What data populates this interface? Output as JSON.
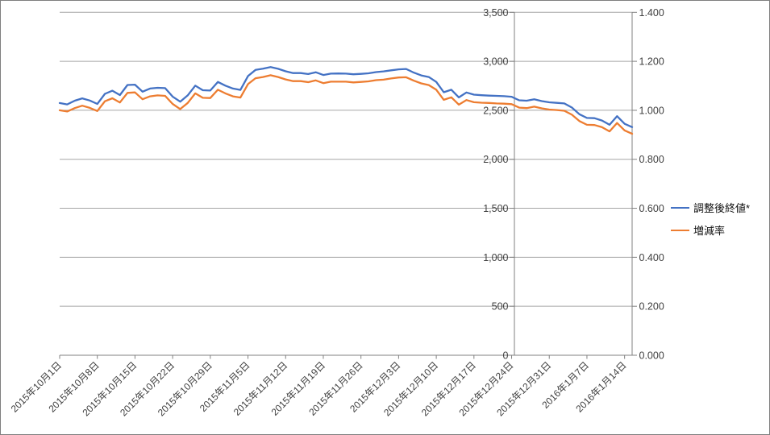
{
  "chart_data": {
    "type": "line",
    "title": "",
    "grid": true,
    "legend_position": "right",
    "x_axis": {
      "label_interval": 5,
      "labels_shown": [
        "2015年10月1日",
        "2015年10月8日",
        "2015年10月15日",
        "2015年10月22日",
        "2015年10月29日",
        "2015年11月5日",
        "2015年11月12日",
        "2015年11月19日",
        "2015年11月26日",
        "2015年12月3日",
        "2015年12月10日",
        "2015年12月17日",
        "2015年12月24日",
        "2015年12月31日",
        "2016年1月7日",
        "2016年1月14日"
      ],
      "categories": [
        "2015年10月1日",
        "2015年10月2日",
        "2015年10月5日",
        "2015年10月6日",
        "2015年10月7日",
        "2015年10月8日",
        "2015年10月9日",
        "2015年10月12日",
        "2015年10月13日",
        "2015年10月14日",
        "2015年10月15日",
        "2015年10月16日",
        "2015年10月19日",
        "2015年10月20日",
        "2015年10月21日",
        "2015年10月22日",
        "2015年10月23日",
        "2015年10月26日",
        "2015年10月27日",
        "2015年10月28日",
        "2015年10月29日",
        "2015年10月30日",
        "2015年11月2日",
        "2015年11月3日",
        "2015年11月4日",
        "2015年11月5日",
        "2015年11月6日",
        "2015年11月9日",
        "2015年11月10日",
        "2015年11月11日",
        "2015年11月12日",
        "2015年11月13日",
        "2015年11月16日",
        "2015年11月17日",
        "2015年11月18日",
        "2015年11月19日",
        "2015年11月20日",
        "2015年11月23日",
        "2015年11月24日",
        "2015年11月25日",
        "2015年11月26日",
        "2015年11月27日",
        "2015年11月30日",
        "2015年12月1日",
        "2015年12月2日",
        "2015年12月3日",
        "2015年12月4日",
        "2015年12月7日",
        "2015年12月8日",
        "2015年12月9日",
        "2015年12月10日",
        "2015年12月11日",
        "2015年12月14日",
        "2015年12月15日",
        "2015年12月16日",
        "2015年12月17日",
        "2015年12月18日",
        "2015年12月21日",
        "2015年12月22日",
        "2015年12月23日",
        "2015年12月24日",
        "2015年12月25日",
        "2015年12月28日",
        "2015年12月29日",
        "2015年12月30日",
        "2015年12月31日",
        "2016年1月1日",
        "2016年1月4日",
        "2016年1月5日",
        "2016年1月6日",
        "2016年1月7日",
        "2016年1月8日",
        "2016年1月11日",
        "2016年1月12日",
        "2016年1月13日",
        "2016年1月14日",
        "2016年1月15日"
      ]
    },
    "series": [
      {
        "name": "調整後終値*",
        "yaxis": "left",
        "color": "#4472C4",
        "values": [
          2574,
          2560,
          2598,
          2622,
          2600,
          2565,
          2668,
          2700,
          2656,
          2758,
          2762,
          2690,
          2722,
          2730,
          2726,
          2640,
          2588,
          2652,
          2752,
          2705,
          2702,
          2790,
          2752,
          2722,
          2708,
          2850,
          2912,
          2925,
          2941,
          2924,
          2898,
          2880,
          2880,
          2870,
          2888,
          2860,
          2874,
          2876,
          2874,
          2868,
          2872,
          2878,
          2890,
          2897,
          2908,
          2918,
          2922,
          2885,
          2856,
          2840,
          2790,
          2684,
          2710,
          2632,
          2682,
          2660,
          2654,
          2650,
          2647,
          2644,
          2638,
          2602,
          2598,
          2612,
          2594,
          2582,
          2576,
          2570,
          2528,
          2460,
          2422,
          2420,
          2396,
          2352,
          2440,
          2362,
          2328
        ]
      },
      {
        "name": "増減率",
        "yaxis": "right",
        "color": "#ED7D31",
        "values": [
          1.0,
          0.995,
          1.009,
          1.019,
          1.01,
          0.997,
          1.037,
          1.049,
          1.032,
          1.071,
          1.073,
          1.045,
          1.057,
          1.061,
          1.059,
          1.026,
          1.005,
          1.03,
          1.069,
          1.051,
          1.05,
          1.084,
          1.069,
          1.057,
          1.052,
          1.107,
          1.131,
          1.136,
          1.143,
          1.136,
          1.126,
          1.119,
          1.119,
          1.115,
          1.122,
          1.111,
          1.117,
          1.117,
          1.117,
          1.114,
          1.116,
          1.118,
          1.123,
          1.125,
          1.13,
          1.134,
          1.135,
          1.121,
          1.11,
          1.103,
          1.084,
          1.043,
          1.053,
          1.023,
          1.042,
          1.033,
          1.031,
          1.03,
          1.028,
          1.027,
          1.025,
          1.011,
          1.009,
          1.015,
          1.008,
          1.003,
          1.001,
          0.998,
          0.982,
          0.956,
          0.941,
          0.94,
          0.931,
          0.914,
          0.948,
          0.918,
          0.904
        ]
      }
    ],
    "left_axis": {
      "min": 0,
      "max": 3500,
      "step": 500,
      "labels": [
        "0",
        "500",
        "1,000",
        "1,500",
        "2,000",
        "2,500",
        "3,000",
        "3,500"
      ]
    },
    "right_axis": {
      "min": 0,
      "max": 1.4,
      "step": 0.2,
      "labels": [
        "0.000",
        "0.200",
        "0.400",
        "0.600",
        "0.800",
        "1.000",
        "1.200",
        "1.400"
      ]
    }
  },
  "colors": {
    "gridline": "#a6a6a6",
    "axis_line": "#808080",
    "tick_text": "#3f3f3f",
    "background": "#ffffff",
    "frame_border": "#7f7f7f"
  }
}
